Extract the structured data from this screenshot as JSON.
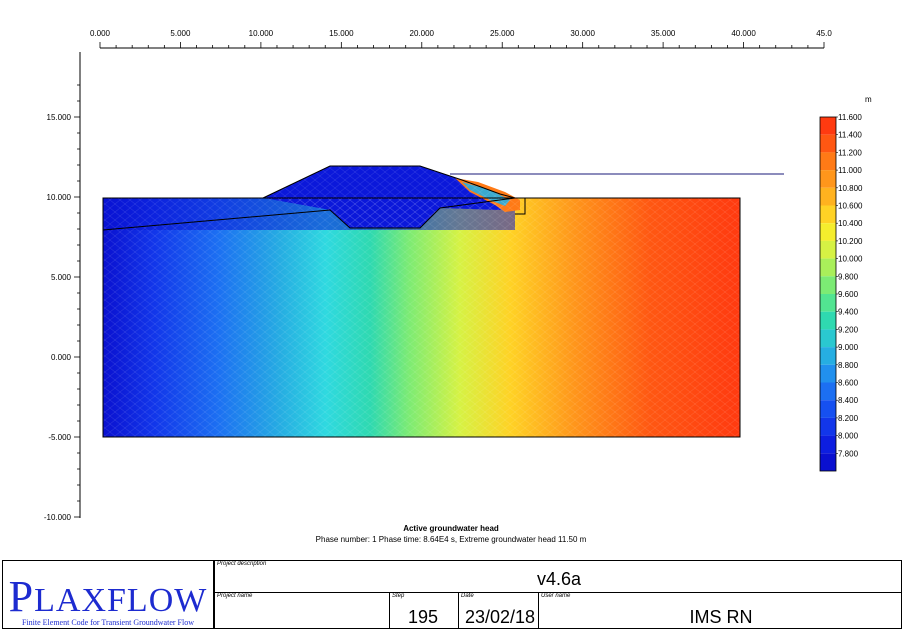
{
  "plot": {
    "x_axis": {
      "ticks": [
        "0.000",
        "5.000",
        "10.000",
        "15.000",
        "20.000",
        "25.000",
        "30.000",
        "35.000",
        "40.000",
        "45.0"
      ],
      "range": [
        0,
        45
      ]
    },
    "y_axis": {
      "ticks": [
        "15.000",
        "10.000",
        "5.000",
        "0.000",
        "-5.000",
        "-10.000"
      ],
      "range": [
        -10,
        15
      ]
    }
  },
  "legend": {
    "unit": "m",
    "labels": [
      "11.600",
      "11.400",
      "11.200",
      "11.000",
      "10.800",
      "10.600",
      "10.400",
      "10.200",
      "10.000",
      "9.800",
      "9.600",
      "9.400",
      "9.200",
      "9.000",
      "8.800",
      "8.600",
      "8.400",
      "8.200",
      "8.000",
      "7.800"
    ],
    "colors": [
      "#ff3a10",
      "#ff5712",
      "#ff7a16",
      "#ff961b",
      "#ffb21f",
      "#ffd225",
      "#f5ed2d",
      "#d6f244",
      "#a9ef5a",
      "#7ceb74",
      "#52e491",
      "#2fd9b0",
      "#2ac8d0",
      "#26aee2",
      "#2190ee",
      "#1c6ff2",
      "#1650f0",
      "#1236ea",
      "#0d1ee0",
      "#0a10d0"
    ]
  },
  "caption": {
    "title": "Active groundwater head",
    "subtitle": "Phase number: 1  Phase time: 8.64E4 s, Extreme groundwater head 11.50 m"
  },
  "title_block": {
    "logo": {
      "first": "P",
      "rest": "LAXFLOW",
      "tagline": "Finite Element Code for Transient Groundwater Flow"
    },
    "project_description_label": "Project description",
    "project_description_value": "v4.6a",
    "project_name_label": "Project name",
    "project_name_value": "",
    "step_label": "Step",
    "step_value": "195",
    "date_label": "Date",
    "date_value": "23/02/18",
    "user_label": "User name",
    "user_value": "IMS RN"
  }
}
